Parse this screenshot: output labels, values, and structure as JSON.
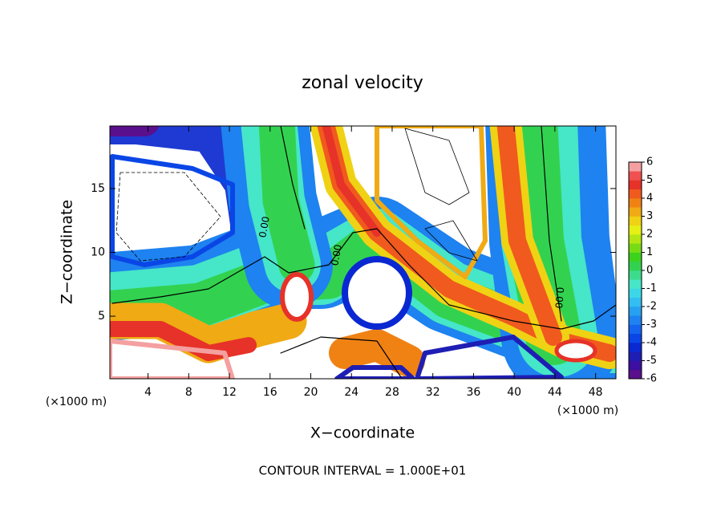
{
  "chart_data": {
    "type": "contour",
    "title": "zonal velocity",
    "x_label": "X−coordinate",
    "y_label": "Z−coordinate",
    "x_unit_left": "(×1000 m)",
    "x_unit_right": "(×1000 m)",
    "footer": "CONTOUR INTERVAL = 1.000E+01",
    "contour_labels": [
      "0.00",
      "0.00",
      "0.00"
    ],
    "xlim": [
      0.25,
      50
    ],
    "xticks": [
      4,
      8,
      12,
      16,
      20,
      24,
      28,
      32,
      36,
      40,
      44,
      48
    ],
    "ylim": [
      0.1,
      19.9
    ],
    "yticks": [
      5,
      10,
      15
    ],
    "colorbar": {
      "lim": [
        -6,
        6
      ],
      "ticks": [
        -6,
        -5,
        -4,
        -3,
        -2,
        -1,
        0,
        1,
        2,
        3,
        4,
        5,
        6
      ],
      "colors": [
        "#5a0f8c",
        "#3c0fa0",
        "#1e1eb4",
        "#0a28d2",
        "#0a46e6",
        "#1464f0",
        "#1e82f0",
        "#28a0f0",
        "#32bef0",
        "#3cd7e6",
        "#46e6c8",
        "#3cdc8c",
        "#32d250",
        "#3cd21e",
        "#78dc14",
        "#b4e614",
        "#e6f014",
        "#f0d214",
        "#f0aa14",
        "#f08214",
        "#f05a1e",
        "#e63228",
        "#f05050",
        "#f4a0a0"
      ]
    }
  }
}
